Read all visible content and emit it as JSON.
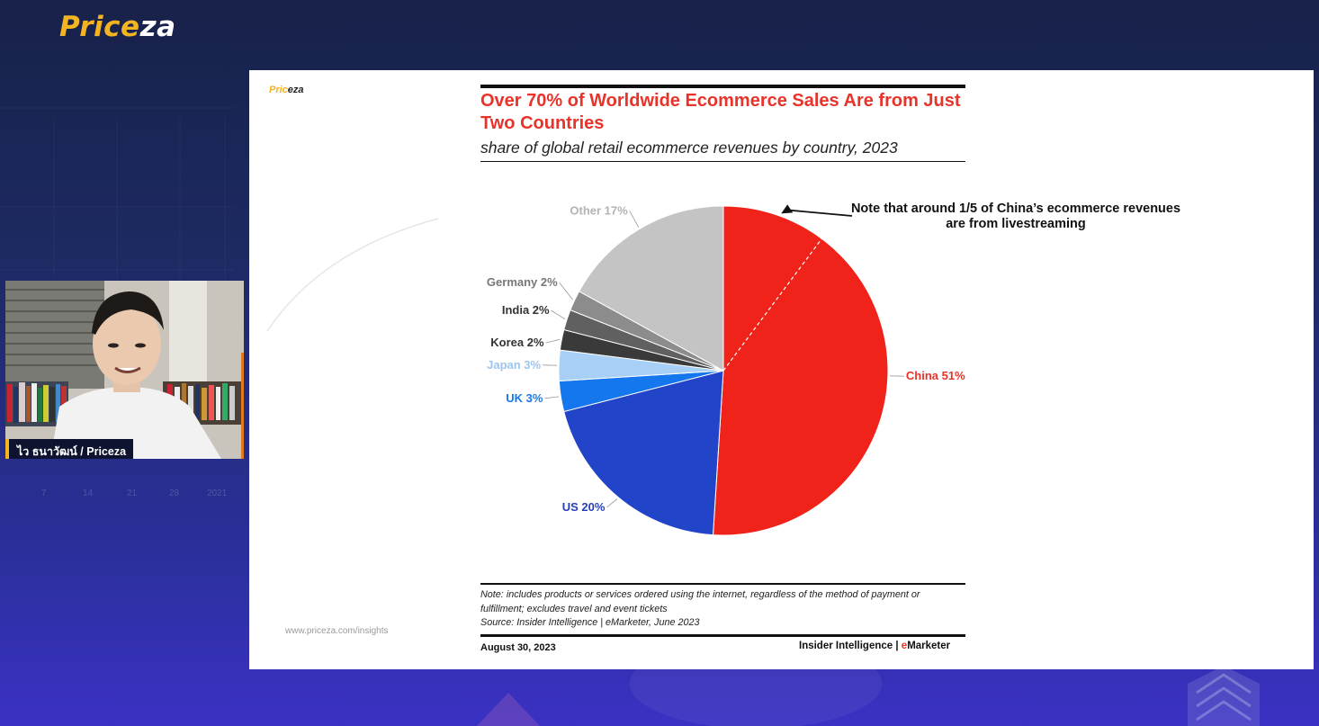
{
  "header": {
    "logo_part1": "Price",
    "logo_part2": "za"
  },
  "presenter": {
    "caption": "ไว ธนาวัฒน์ / Priceza"
  },
  "background_axis_ticks": [
    "7",
    "14",
    "21",
    "28",
    "2021"
  ],
  "slide": {
    "logo_part1": "Pric",
    "logo_part2": "eza",
    "title": "Over 70% of Worldwide Ecommerce Sales Are from Just Two Countries",
    "subtitle": "share of global retail ecommerce revenues by country, 2023",
    "callout": "Note that around 1/5 of China’s ecommerce revenues are from livestreaming",
    "note_label": "Note:",
    "note": "includes products or services ordered using the internet, regardless of the method of payment or fulfillment; excludes travel and event tickets",
    "source": "Source: Insider Intelligence | eMarketer, June 2023",
    "url": "www.priceza.com/insights",
    "date": "August 30, 2023",
    "brand_part1": "Insider Intelligence | ",
    "brand_part2": "e",
    "brand_part3": "Marketer"
  },
  "chart_data": {
    "type": "pie",
    "title": "Over 70% of Worldwide Ecommerce Sales Are from Just Two Countries",
    "subtitle": "share of global retail ecommerce revenues by country, 2023",
    "slices": [
      {
        "label": "China 51%",
        "name": "China",
        "value": 51,
        "color": "#f0231b",
        "label_color": "#e8332a"
      },
      {
        "label": "US 20%",
        "name": "US",
        "value": 20,
        "color": "#2244c8",
        "label_color": "#2840b8"
      },
      {
        "label": "UK 3%",
        "name": "UK",
        "value": 3,
        "color": "#1577ee",
        "label_color": "#1a78e8"
      },
      {
        "label": "Japan 3%",
        "name": "Japan",
        "value": 3,
        "color": "#a8d0f6",
        "label_color": "#9cc6ee"
      },
      {
        "label": "Korea 2%",
        "name": "Korea",
        "value": 2,
        "color": "#3a3a3a",
        "label_color": "#333333"
      },
      {
        "label": "India 2%",
        "name": "India",
        "value": 2,
        "color": "#606060",
        "label_color": "#333333"
      },
      {
        "label": "Germany 2%",
        "name": "Germany",
        "value": 2,
        "color": "#8c8c8c",
        "label_color": "#777777"
      },
      {
        "label": "Other 17%",
        "name": "Other",
        "value": 17,
        "color": "#c4c4c4",
        "label_color": "#b3b3b3"
      }
    ],
    "annotation": "Note that around 1/5 of China’s ecommerce revenues are from livestreaming"
  }
}
